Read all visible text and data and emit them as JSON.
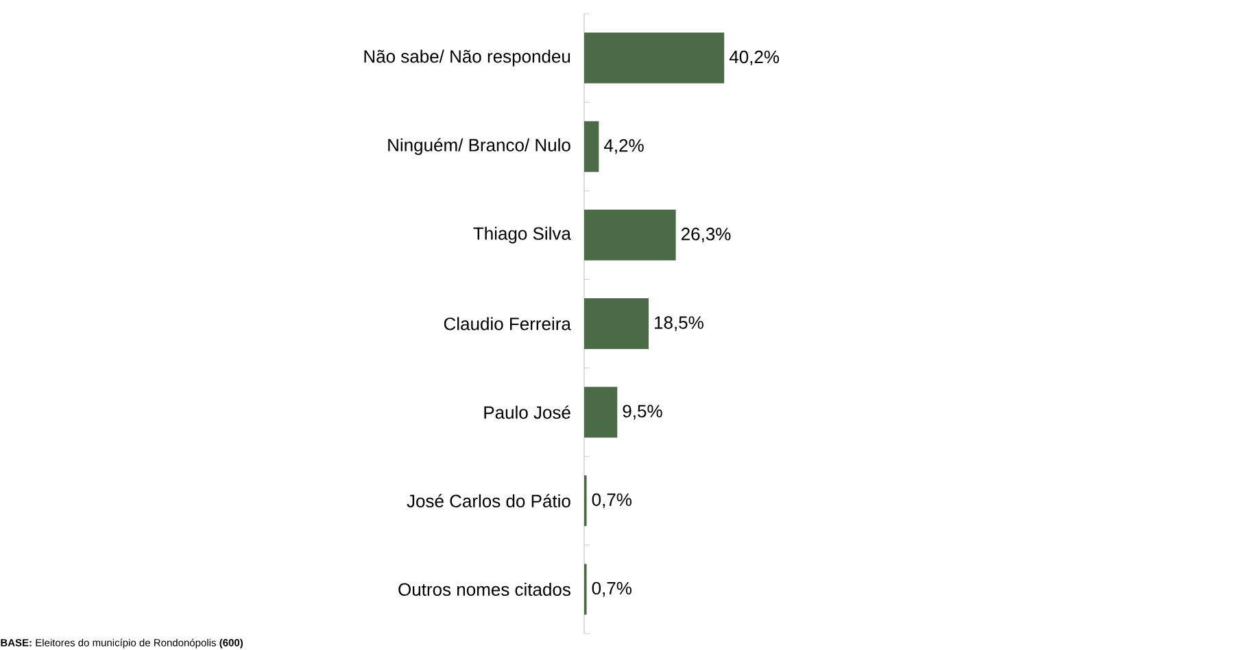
{
  "chart_data": {
    "type": "bar",
    "orientation": "horizontal",
    "categories": [
      "Não sabe/ Não respondeu",
      "Ninguém/ Branco/ Nulo",
      "Thiago Silva",
      "Claudio Ferreira",
      "Paulo José",
      "José Carlos do Pátio",
      "Outros nomes citados"
    ],
    "values": [
      40.2,
      4.2,
      26.3,
      18.5,
      9.5,
      0.7,
      0.7
    ],
    "value_labels": [
      "40,2%",
      "4,2%",
      "26,3%",
      "18,5%",
      "9,5%",
      "0,7%",
      "0,7%"
    ],
    "color": "#4a6b45",
    "tick_labels": "y",
    "grid": false,
    "annotations": [
      "**BASE:** Eleitores do município de Rondonópolis **(600)**"
    ]
  }
}
